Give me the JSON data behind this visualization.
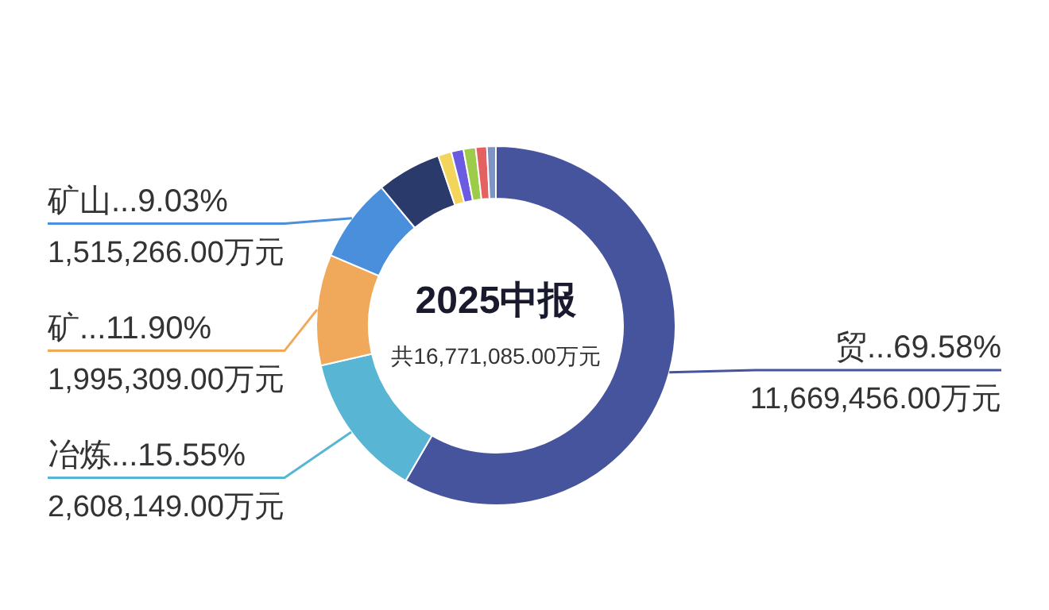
{
  "chart_data": {
    "type": "donut",
    "title": "2025中报",
    "subtitle": "共16,771,085.00万元",
    "categories": [
      "贸...69.58%",
      "冶炼...15.55%",
      "矿...11.90%",
      "矿山...9.03%",
      null,
      null,
      null,
      null,
      null,
      null
    ],
    "values": [
      11669456,
      2608149,
      1995309,
      1515266,
      1160000,
      240000,
      220000,
      220000,
      200000,
      160000
    ],
    "value_labels": [
      "11,669,456.00万元",
      "2,608,149.00万元",
      "1,995,309.00万元",
      "1,515,266.00万元",
      null,
      null,
      null,
      null,
      null,
      null
    ],
    "colors": [
      "#46549e",
      "#58b5d3",
      "#f0a95a",
      "#4a8fdc",
      "#2a3a6b",
      "#f2d55a",
      "#6a5be0",
      "#9ccc4a",
      "#e56060",
      "#7f93c4"
    ]
  }
}
